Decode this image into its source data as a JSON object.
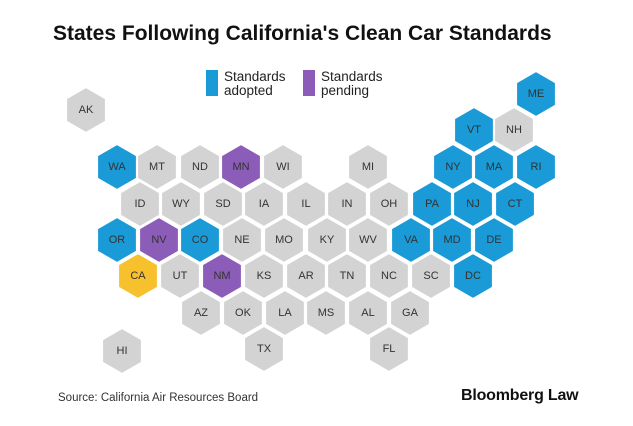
{
  "title": "States Following California's Clean Car Standards",
  "legend": [
    {
      "label_line1": "Standards",
      "label_line2": "adopted",
      "color": "#1a9ad6"
    },
    {
      "label_line1": "Standards",
      "label_line2": "pending",
      "color": "#8b5cb8"
    }
  ],
  "colors": {
    "adopted": "#1a9ad6",
    "pending": "#8b5cb8",
    "california": "#f6c12d",
    "none": "#d3d3d3"
  },
  "states": [
    {
      "abbr": "AK",
      "status": "none"
    },
    {
      "abbr": "HI",
      "status": "none"
    },
    {
      "abbr": "ME",
      "status": "adopted"
    },
    {
      "abbr": "VT",
      "status": "adopted"
    },
    {
      "abbr": "NH",
      "status": "none"
    },
    {
      "abbr": "WA",
      "status": "adopted"
    },
    {
      "abbr": "MT",
      "status": "none"
    },
    {
      "abbr": "ND",
      "status": "none"
    },
    {
      "abbr": "MN",
      "status": "pending"
    },
    {
      "abbr": "WI",
      "status": "none"
    },
    {
      "abbr": "MI",
      "status": "none"
    },
    {
      "abbr": "NY",
      "status": "adopted"
    },
    {
      "abbr": "MA",
      "status": "adopted"
    },
    {
      "abbr": "RI",
      "status": "adopted"
    },
    {
      "abbr": "ID",
      "status": "none"
    },
    {
      "abbr": "WY",
      "status": "none"
    },
    {
      "abbr": "SD",
      "status": "none"
    },
    {
      "abbr": "IA",
      "status": "none"
    },
    {
      "abbr": "IL",
      "status": "none"
    },
    {
      "abbr": "IN",
      "status": "none"
    },
    {
      "abbr": "OH",
      "status": "none"
    },
    {
      "abbr": "PA",
      "status": "adopted"
    },
    {
      "abbr": "NJ",
      "status": "adopted"
    },
    {
      "abbr": "CT",
      "status": "adopted"
    },
    {
      "abbr": "OR",
      "status": "adopted"
    },
    {
      "abbr": "NV",
      "status": "pending"
    },
    {
      "abbr": "CO",
      "status": "adopted"
    },
    {
      "abbr": "NE",
      "status": "none"
    },
    {
      "abbr": "MO",
      "status": "none"
    },
    {
      "abbr": "KY",
      "status": "none"
    },
    {
      "abbr": "WV",
      "status": "none"
    },
    {
      "abbr": "VA",
      "status": "adopted"
    },
    {
      "abbr": "MD",
      "status": "adopted"
    },
    {
      "abbr": "DE",
      "status": "adopted"
    },
    {
      "abbr": "CA",
      "status": "california"
    },
    {
      "abbr": "UT",
      "status": "none"
    },
    {
      "abbr": "NM",
      "status": "pending"
    },
    {
      "abbr": "KS",
      "status": "none"
    },
    {
      "abbr": "AR",
      "status": "none"
    },
    {
      "abbr": "TN",
      "status": "none"
    },
    {
      "abbr": "NC",
      "status": "none"
    },
    {
      "abbr": "SC",
      "status": "none"
    },
    {
      "abbr": "DC",
      "status": "adopted"
    },
    {
      "abbr": "AZ",
      "status": "none"
    },
    {
      "abbr": "OK",
      "status": "none"
    },
    {
      "abbr": "LA",
      "status": "none"
    },
    {
      "abbr": "MS",
      "status": "none"
    },
    {
      "abbr": "AL",
      "status": "none"
    },
    {
      "abbr": "GA",
      "status": "none"
    },
    {
      "abbr": "TX",
      "status": "none"
    },
    {
      "abbr": "FL",
      "status": "none"
    }
  ],
  "source": "Source: California Air Resources Board",
  "brand": "Bloomberg Law"
}
